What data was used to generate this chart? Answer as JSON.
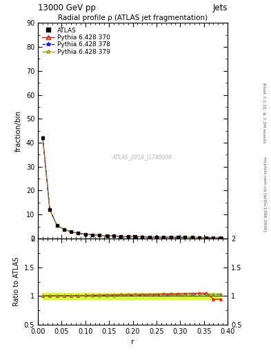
{
  "title": "Radial profile ρ (ATLAS jet fragmentation)",
  "top_left_label": "13000 GeV pp",
  "top_right_label": "Jets",
  "right_label_top": "Rivet 3.1.10, ≥ 3.3M events",
  "right_label_bottom": "mcplots.cern.ch [arXiv:1306.3436]",
  "watermark": "ATLAS_2019_I1740909",
  "xlabel": "r",
  "ylabel_main": "fraction/bin",
  "ylabel_ratio": "Ratio to ATLAS",
  "ylim_main": [
    0,
    90
  ],
  "ylim_ratio": [
    0.5,
    2.0
  ],
  "yticks_main": [
    0,
    10,
    20,
    30,
    40,
    50,
    60,
    70,
    80,
    90
  ],
  "yticks_ratio": [
    0.5,
    1.0,
    1.5,
    2.0
  ],
  "xlim": [
    0,
    0.4
  ],
  "x_data": [
    0.01,
    0.025,
    0.04,
    0.055,
    0.07,
    0.085,
    0.1,
    0.115,
    0.13,
    0.145,
    0.16,
    0.175,
    0.19,
    0.205,
    0.22,
    0.235,
    0.25,
    0.265,
    0.28,
    0.295,
    0.31,
    0.325,
    0.34,
    0.355,
    0.37,
    0.385
  ],
  "atlas_y": [
    42.0,
    12.0,
    5.5,
    3.8,
    2.8,
    2.2,
    1.8,
    1.5,
    1.3,
    1.15,
    1.0,
    0.9,
    0.82,
    0.75,
    0.7,
    0.65,
    0.6,
    0.57,
    0.53,
    0.5,
    0.47,
    0.44,
    0.42,
    0.39,
    0.37,
    0.35
  ],
  "atlas_yerr": [
    0.5,
    0.2,
    0.1,
    0.06,
    0.04,
    0.03,
    0.02,
    0.02,
    0.015,
    0.012,
    0.01,
    0.009,
    0.008,
    0.008,
    0.007,
    0.007,
    0.006,
    0.006,
    0.006,
    0.005,
    0.005,
    0.005,
    0.004,
    0.004,
    0.004,
    0.004
  ],
  "p370_y": [
    42.3,
    12.1,
    5.55,
    3.82,
    2.82,
    2.22,
    1.82,
    1.52,
    1.32,
    1.17,
    1.02,
    0.92,
    0.84,
    0.77,
    0.72,
    0.67,
    0.62,
    0.59,
    0.55,
    0.52,
    0.49,
    0.46,
    0.44,
    0.41,
    0.35,
    0.33
  ],
  "p378_y": [
    42.1,
    12.02,
    5.52,
    3.81,
    2.81,
    2.21,
    1.81,
    1.51,
    1.31,
    1.16,
    1.01,
    0.91,
    0.83,
    0.76,
    0.71,
    0.66,
    0.61,
    0.58,
    0.54,
    0.51,
    0.48,
    0.45,
    0.43,
    0.4,
    0.38,
    0.36
  ],
  "p379_y": [
    42.2,
    12.05,
    5.53,
    3.81,
    2.81,
    2.21,
    1.81,
    1.51,
    1.31,
    1.16,
    1.01,
    0.91,
    0.83,
    0.76,
    0.71,
    0.66,
    0.61,
    0.58,
    0.54,
    0.51,
    0.48,
    0.45,
    0.43,
    0.4,
    0.38,
    0.36
  ],
  "legend_entries": [
    "ATLAS",
    "Pythia 6.428 370",
    "Pythia 6.428 378",
    "Pythia 6.428 379"
  ],
  "color_atlas": "#000000",
  "color_p370": "#ff0000",
  "color_p378": "#0000ff",
  "color_p379": "#999900",
  "color_band": "#ccff00",
  "bg_color": "#ffffff"
}
